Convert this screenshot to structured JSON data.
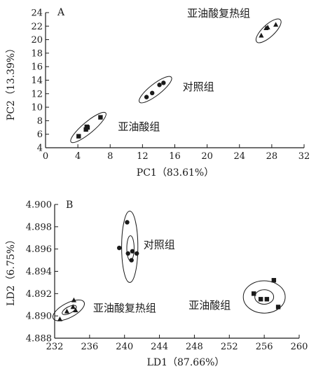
{
  "chart_data": [
    {
      "panel": "A",
      "type": "scatter",
      "xlabel": "PC1（83.61%）",
      "ylabel": "PC2（13.39%）",
      "xlim": [
        0,
        32
      ],
      "ylim": [
        4,
        24
      ],
      "xticks": [
        0,
        4,
        8,
        12,
        16,
        20,
        24,
        28,
        32
      ],
      "yticks": [
        4,
        6,
        8,
        10,
        12,
        14,
        16,
        18,
        20,
        22,
        24
      ],
      "groups": [
        {
          "label": "亚油酸复热组",
          "marker": "triangle",
          "points": [
            [
              26.7,
              20.6
            ],
            [
              27.3,
              21.7
            ],
            [
              27.5,
              21.8
            ],
            [
              28.5,
              22.2
            ]
          ],
          "ellipse": {
            "center": [
              27.6,
              21.3
            ],
            "radii": [
              2.0,
              0.75
            ],
            "angle": -43
          }
        },
        {
          "label": "对照组",
          "marker": "circle",
          "points": [
            [
              12.5,
              11.5
            ],
            [
              13.2,
              12.1
            ],
            [
              14.1,
              13.3
            ],
            [
              14.6,
              13.6
            ]
          ],
          "ellipse": {
            "center": [
              13.6,
              12.6
            ],
            "radii": [
              2.5,
              0.7
            ],
            "angle": -38
          }
        },
        {
          "label": "亚油酸组",
          "marker": "square",
          "points": [
            [
              4.1,
              5.7
            ],
            [
              5.0,
              6.7
            ],
            [
              5.2,
              7.0
            ],
            [
              5.1,
              7.1
            ],
            [
              6.8,
              8.5
            ]
          ],
          "ellipse": {
            "center": [
              5.3,
              7.0
            ],
            "radii": [
              2.8,
              0.7
            ],
            "angle": -40
          }
        }
      ]
    },
    {
      "panel": "B",
      "type": "scatter",
      "xlabel": "LD1（87.66%）",
      "ylabel": "LD2（6.75%）",
      "xlim": [
        232,
        260
      ],
      "ylim": [
        4.888,
        4.9
      ],
      "xticks": [
        232,
        236,
        240,
        244,
        248,
        252,
        256,
        260
      ],
      "yticks": [
        4.888,
        4.89,
        4.892,
        4.894,
        4.896,
        4.898,
        4.9
      ],
      "tick_labels_y": [
        "4.888",
        "4.890",
        "4.892",
        "4.894",
        "4.896",
        "4.898",
        "4.900"
      ],
      "groups": [
        {
          "label": "对照组",
          "marker": "circle",
          "points": [
            [
              239.4,
              4.8961
            ],
            [
              240.3,
              4.8984
            ],
            [
              240.4,
              4.8956
            ],
            [
              240.8,
              4.895
            ],
            [
              240.9,
              4.8958
            ],
            [
              241.4,
              4.8956
            ]
          ],
          "ellipse": {
            "center": [
              240.6,
              4.8962
            ],
            "radii": [
              0.0032,
              1.55
            ],
            "angle": 0
          }
        },
        {
          "label": "亚油酸复热组",
          "marker": "triangle",
          "points": [
            [
              232.6,
              4.8897
            ],
            [
              233.4,
              4.8904
            ],
            [
              234.1,
              4.8908
            ],
            [
              234.2,
              4.8914
            ],
            [
              234.4,
              4.8905
            ]
          ],
          "ellipse": {
            "center": [
              233.6,
              4.8905
            ],
            "radii": [
              2.0,
              0.00065
            ],
            "angle": -28
          }
        },
        {
          "label": "亚油酸组",
          "marker": "square",
          "points": [
            [
              254.8,
              4.892
            ],
            [
              255.6,
              4.8915
            ],
            [
              256.3,
              4.8915
            ],
            [
              257.1,
              4.8932
            ],
            [
              257.6,
              4.8908
            ]
          ],
          "ellipse": {
            "center": [
              256.0,
              4.8917
            ],
            "radii": [
              2.4,
              0.00145
            ],
            "angle": 0
          }
        }
      ]
    }
  ]
}
